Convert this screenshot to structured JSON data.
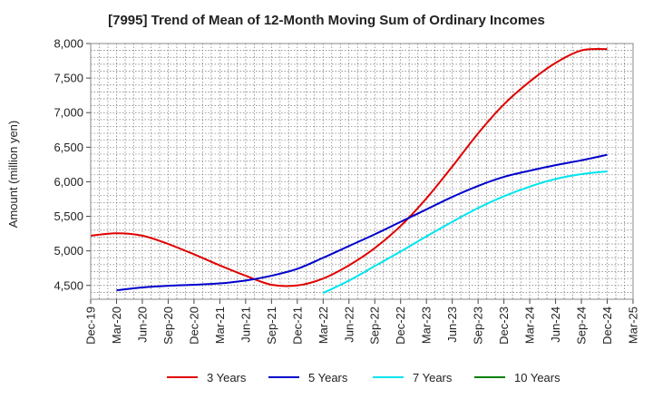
{
  "chart_data": {
    "type": "line",
    "title": "[7995]  Trend of Mean of 12-Month Moving Sum of Ordinary Incomes",
    "xlabel": "",
    "ylabel": "Amount (million yen)",
    "ylim": [
      4300,
      8000
    ],
    "yticks": [
      4500,
      5000,
      5500,
      6000,
      6500,
      7000,
      7500,
      8000
    ],
    "ytick_labels": [
      "4,500",
      "5,000",
      "5,500",
      "6,000",
      "6,500",
      "7,000",
      "7,500",
      "8,000"
    ],
    "categories": [
      "Dec-19",
      "Mar-20",
      "Jun-20",
      "Sep-20",
      "Dec-20",
      "Mar-21",
      "Jun-21",
      "Sep-21",
      "Dec-21",
      "Mar-22",
      "Jun-22",
      "Sep-22",
      "Dec-22",
      "Mar-23",
      "Jun-23",
      "Sep-23",
      "Dec-23",
      "Mar-24",
      "Jun-24",
      "Sep-24",
      "Dec-24",
      "Mar-25"
    ],
    "grid": true,
    "legend_position": "bottom",
    "series": [
      {
        "name": "3 Years",
        "color": "#e00000",
        "values": [
          5220,
          5255,
          5220,
          5100,
          4950,
          4790,
          4640,
          4510,
          4500,
          4600,
          4790,
          5040,
          5360,
          5760,
          6220,
          6700,
          7120,
          7450,
          7720,
          7900,
          7920,
          null
        ]
      },
      {
        "name": "5 Years",
        "color": "#0000cc",
        "values": [
          null,
          4430,
          4470,
          4495,
          4510,
          4530,
          4570,
          4640,
          4740,
          4900,
          5070,
          5240,
          5420,
          5600,
          5780,
          5940,
          6070,
          6160,
          6240,
          6310,
          6390,
          null
        ]
      },
      {
        "name": "7 Years",
        "color": "#00e5ee",
        "values": [
          null,
          null,
          null,
          null,
          null,
          null,
          null,
          null,
          null,
          4390,
          4570,
          4780,
          4990,
          5210,
          5420,
          5620,
          5790,
          5930,
          6040,
          6110,
          6150,
          null
        ]
      },
      {
        "name": "10 Years",
        "color": "#008000",
        "values": [
          null,
          null,
          null,
          null,
          null,
          null,
          null,
          null,
          null,
          null,
          null,
          null,
          null,
          null,
          null,
          null,
          null,
          null,
          null,
          null,
          null,
          null
        ]
      }
    ]
  }
}
